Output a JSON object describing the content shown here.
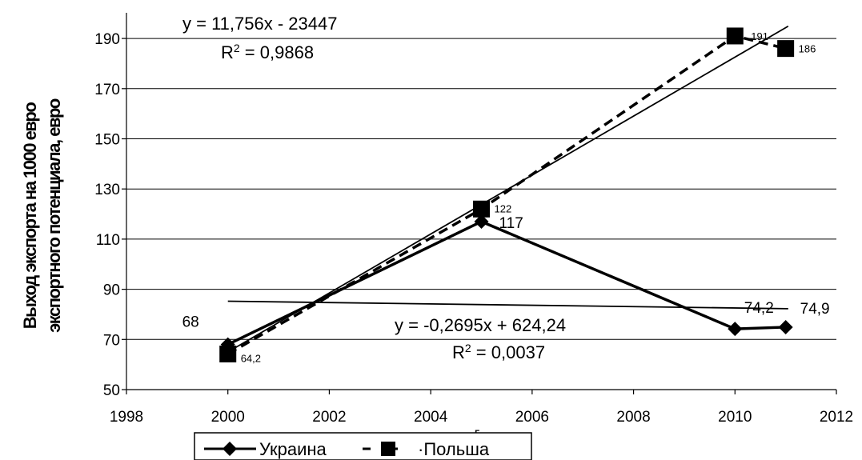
{
  "chart_data": {
    "type": "line",
    "ylabel_line1": "Выход экспорта на 1000 евро",
    "ylabel_line2": "экспортного потенциала, евро",
    "xlabel": "г",
    "xlim": [
      1998,
      2012
    ],
    "ylim": [
      50,
      190
    ],
    "x_ticks": [
      1998,
      2000,
      2002,
      2004,
      2006,
      2008,
      2010,
      2012
    ],
    "y_ticks": [
      50,
      70,
      90,
      110,
      130,
      150,
      170,
      190
    ],
    "grid": "horizontal",
    "legend_position": "bottom",
    "series": [
      {
        "name": "Украина",
        "x": [
          2000,
          2005,
          2010,
          2011
        ],
        "values": [
          68,
          117,
          74.2,
          74.9
        ],
        "labels": [
          "68",
          "117",
          "74,2",
          "74,9"
        ],
        "marker": "diamond",
        "line_style": "solid",
        "trendline": {
          "equation": "y = -0,2695x + 624,24",
          "r2": "0,0037",
          "slope": -0.2695,
          "intercept": 624.24,
          "x_range": [
            2000,
            2011
          ]
        }
      },
      {
        "name": "Польша",
        "x": [
          2000,
          2005,
          2010,
          2011
        ],
        "values": [
          64.2,
          122,
          191,
          186
        ],
        "labels": [
          "64,2",
          "122",
          "191",
          "186"
        ],
        "marker": "square",
        "line_style": "dashed",
        "trendline": {
          "equation": "y = 11,756x - 23447",
          "r2": "0,9868",
          "slope": 11.756,
          "intercept": -23447,
          "x_range": [
            2000,
            2011
          ]
        }
      }
    ],
    "colors": {
      "line": "#000000",
      "grid": "#000000",
      "background": "#ffffff"
    }
  }
}
